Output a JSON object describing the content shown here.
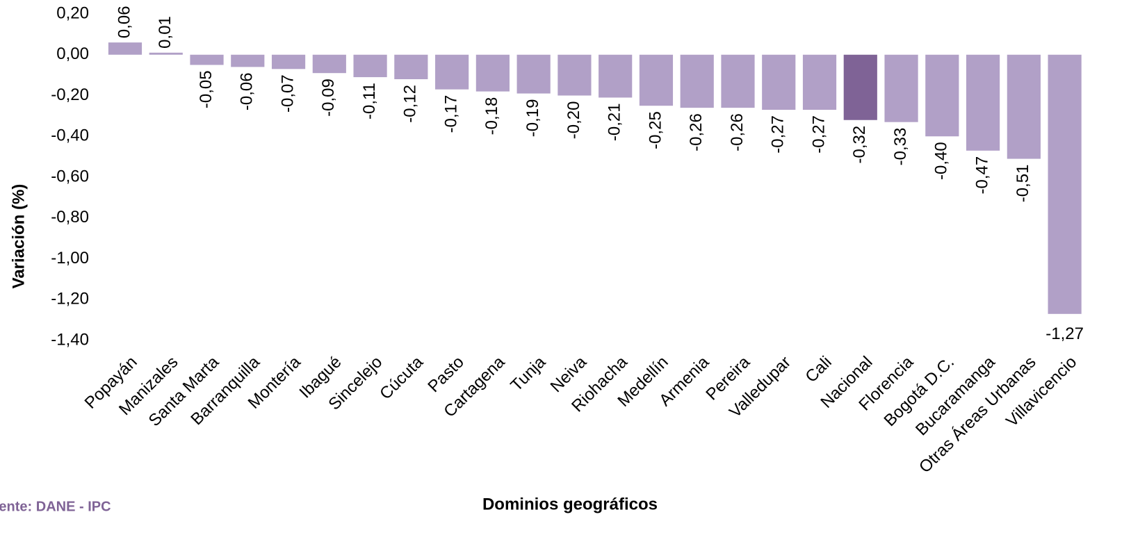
{
  "chart_data": {
    "type": "bar",
    "categories": [
      "Popayán",
      "Manizales",
      "Santa Marta",
      "Barranquilla",
      "Montería",
      "Ibagué",
      "Sincelejo",
      "Cúcuta",
      "Pasto",
      "Cartagena",
      "Tunja",
      "Neiva",
      "Riohacha",
      "Medellín",
      "Armenia",
      "Pereira",
      "Valledupar",
      "Cali",
      "Nacional",
      "Florencia",
      "Bogotá D.C.",
      "Bucaramanga",
      "Otras Áreas Urbanas",
      "Villavicencio"
    ],
    "values": [
      0.06,
      0.01,
      -0.05,
      -0.06,
      -0.07,
      -0.09,
      -0.11,
      -0.12,
      -0.17,
      -0.18,
      -0.19,
      -0.2,
      -0.21,
      -0.25,
      -0.26,
      -0.26,
      -0.27,
      -0.27,
      -0.32,
      -0.33,
      -0.4,
      -0.47,
      -0.51,
      -1.27
    ],
    "value_labels": [
      "0,06",
      "0,01",
      "-0,05",
      "-0,06",
      "-0,07",
      "-0,09",
      "-0,11",
      "-0,12",
      "-0,17",
      "-0,18",
      "-0,19",
      "-0,20",
      "-0,21",
      "-0,25",
      "-0,26",
      "-0,26",
      "-0,27",
      "-0,27",
      "-0,32",
      "-0,33",
      "-0,40",
      "-0,47",
      "-0,51",
      "-1,27"
    ],
    "colors": [
      "#b1a0c7",
      "#b1a0c7",
      "#b1a0c7",
      "#b1a0c7",
      "#b1a0c7",
      "#b1a0c7",
      "#b1a0c7",
      "#b1a0c7",
      "#b1a0c7",
      "#b1a0c7",
      "#b1a0c7",
      "#b1a0c7",
      "#b1a0c7",
      "#b1a0c7",
      "#b1a0c7",
      "#b1a0c7",
      "#b1a0c7",
      "#b1a0c7",
      "#7f6396",
      "#b1a0c7",
      "#b1a0c7",
      "#b1a0c7",
      "#b1a0c7",
      "#b1a0c7"
    ],
    "ylim": [
      -1.4,
      0.2
    ],
    "yticks": [
      {
        "value": 0.2,
        "label": "0,20"
      },
      {
        "value": 0,
        "label": "0,00"
      },
      {
        "value": -0.2,
        "label": "-0,20"
      },
      {
        "value": -0.4,
        "label": "-0,40"
      },
      {
        "value": -0.6,
        "label": "-0,60"
      },
      {
        "value": -0.8,
        "label": "-0,80"
      },
      {
        "value": -1.0,
        "label": "-1,00"
      },
      {
        "value": -1.2,
        "label": "-1,20"
      },
      {
        "value": -1.4,
        "label": "-1,40"
      }
    ],
    "grid": false,
    "x_label": "Dominios geográficos",
    "y_label": "Variación (%)",
    "source": "Fuente: DANE - IPC"
  }
}
